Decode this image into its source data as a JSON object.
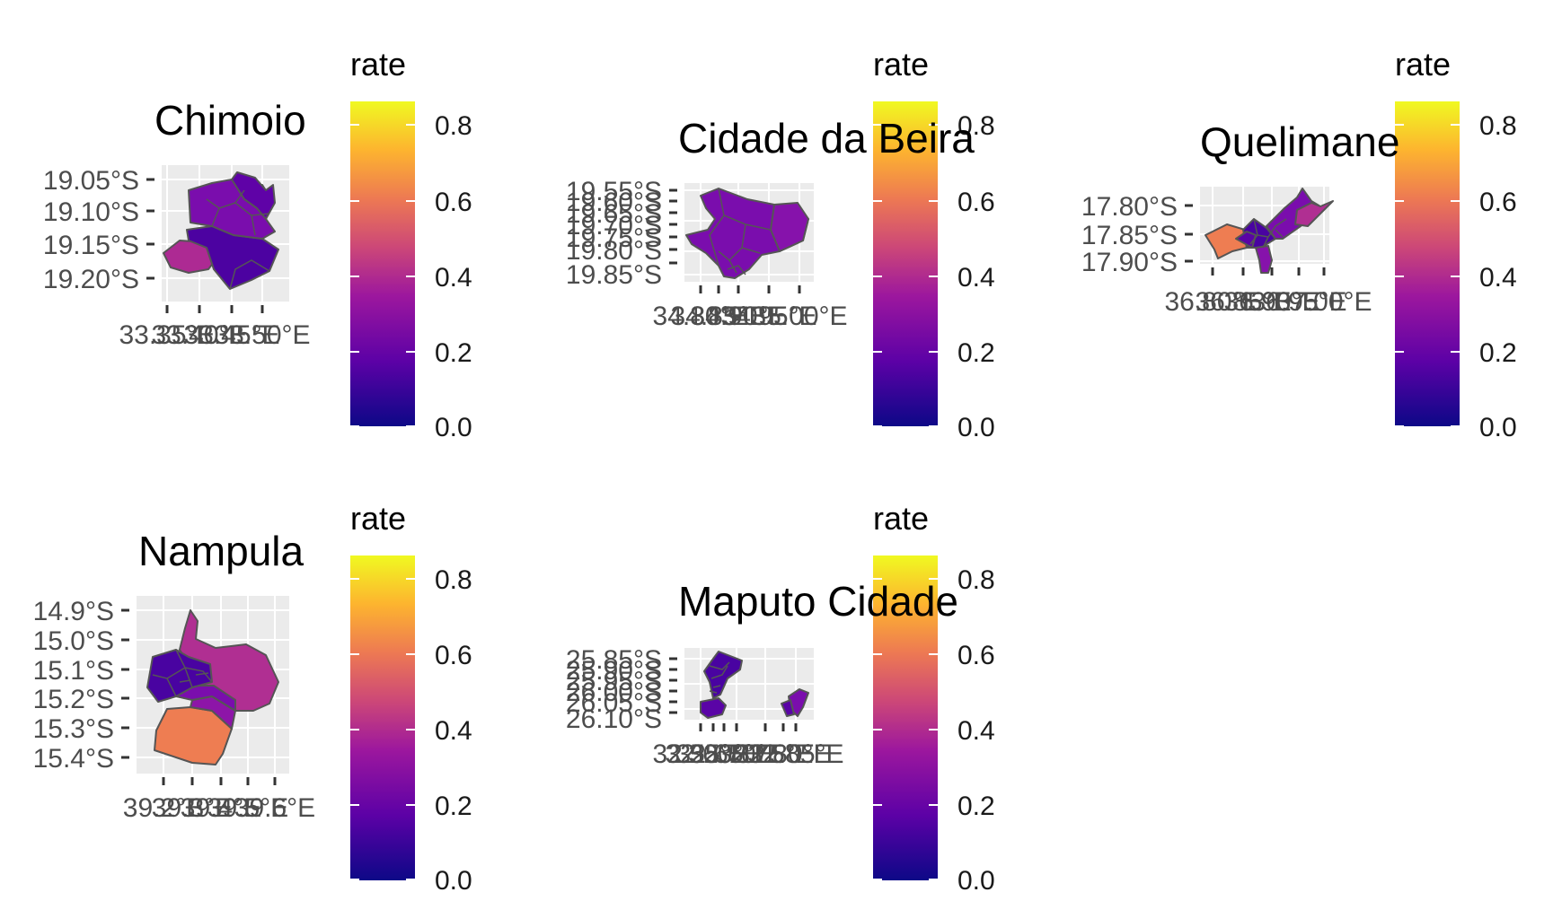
{
  "legend_title": "rate",
  "legend_ticks": [
    "0.8",
    "0.6",
    "0.4",
    "0.2",
    "0.0"
  ],
  "colors": {
    "scale": [
      "#0d0887",
      "#6a00a8",
      "#b12a90",
      "#e16462",
      "#fca636",
      "#f0f921"
    ],
    "orange": "#ee7d52",
    "magenta": "#b02f92",
    "purple": "#7a0fae",
    "violet": "#5a04a6",
    "indigo": "#4903a1",
    "panel": "#ebebeb",
    "border": "#555555"
  },
  "maps": [
    {
      "title": "Chimoio",
      "y_labels": [
        "19.05°S",
        "19.10°S",
        "19.15°S",
        "19.20°S"
      ],
      "x_labels": [
        "33.35°E",
        "33.40°E",
        "33.45°E",
        "33.50°E"
      ]
    },
    {
      "title": "Cidade da Beira",
      "y_labels": [
        "19.55°S",
        "19.60°S",
        "19.65°S",
        "19.70°S",
        "19.75°S",
        "19.80°S",
        "19.85°S"
      ],
      "x_labels": [
        "34.80°E",
        "34.85°E",
        "34.90°E",
        "34.95°E",
        "35.00°E"
      ]
    },
    {
      "title": "Quelimane",
      "y_labels": [
        "17.80°S",
        "17.85°S",
        "17.90°S"
      ],
      "x_labels": [
        "36.80°E",
        "36.85°E",
        "36.90°E",
        "36.95°E",
        "37.00°E"
      ]
    },
    {
      "title": "Nampula",
      "y_labels": [
        "14.9°S",
        "15.0°S",
        "15.1°S",
        "15.2°S",
        "15.3°S",
        "15.4°S"
      ],
      "x_labels": [
        "39.2°E",
        "39.3°E",
        "39.4°E",
        "39.5°E",
        "39.6°E"
      ]
    },
    {
      "title": "Maputo Cidade",
      "y_labels": [
        "25.85°S",
        "25.90°S",
        "25.95°S",
        "26.00°S",
        "26.05°S",
        "26.10°S"
      ],
      "x_labels": [
        "32.55°E",
        "32.60°E",
        "32.65°E",
        "32.70°E",
        "32.75°E",
        "32.80°E",
        "32.85°E"
      ]
    }
  ]
}
